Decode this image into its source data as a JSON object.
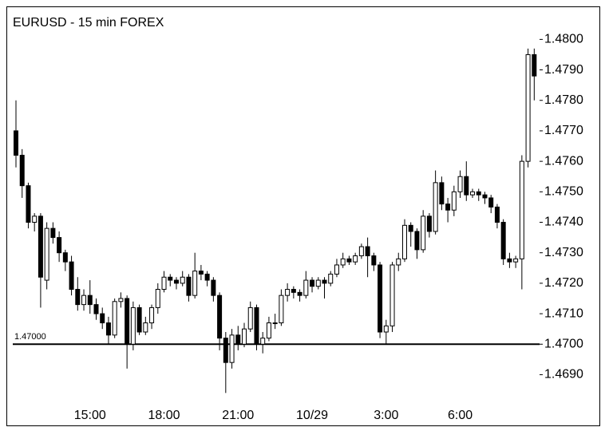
{
  "chart_data": {
    "type": "candlestick",
    "title": "EURUSD - 15 min  FOREX",
    "categories": [
      null,
      null,
      null,
      null,
      null,
      null,
      null,
      null,
      null,
      null,
      null,
      null,
      "15:00",
      null,
      null,
      null,
      null,
      null,
      null,
      null,
      null,
      null,
      null,
      null,
      "18:00",
      null,
      null,
      null,
      null,
      null,
      null,
      null,
      null,
      null,
      null,
      null,
      "21:00",
      null,
      null,
      null,
      null,
      null,
      null,
      null,
      null,
      null,
      null,
      null,
      "10/29",
      null,
      null,
      null,
      null,
      null,
      null,
      null,
      null,
      null,
      null,
      null,
      "3:00",
      null,
      null,
      null,
      null,
      null,
      null,
      null,
      null,
      null,
      null,
      null,
      "6:00",
      null,
      null,
      null,
      null,
      null,
      null,
      null,
      null,
      null,
      null,
      null,
      null
    ],
    "open": [
      1.477,
      1.4762,
      1.4752,
      1.474,
      1.4742,
      1.4721,
      1.4738,
      1.4735,
      1.473,
      1.4727,
      1.4718,
      1.4713,
      1.4716,
      1.4713,
      1.471,
      1.4707,
      1.4703,
      1.4714,
      1.4715,
      1.47,
      1.4712,
      1.4704,
      1.4707,
      1.4712,
      1.4718,
      1.4722,
      1.4721,
      1.472,
      1.4722,
      1.4716,
      1.4724,
      1.4723,
      1.4721,
      1.4716,
      1.4702,
      1.4694,
      1.4703,
      1.47,
      1.4705,
      1.4712,
      1.47,
      1.4702,
      1.4707,
      1.4707,
      1.4716,
      1.4718,
      1.4717,
      1.4716,
      1.4721,
      1.4719,
      1.4721,
      1.472,
      1.4723,
      1.4726,
      1.4728,
      1.4727,
      1.4729,
      1.4732,
      1.4729,
      1.4726,
      1.4704,
      1.4706,
      1.4726,
      1.4728,
      1.4739,
      1.4737,
      1.4731,
      1.4742,
      1.4737,
      1.4753,
      1.4746,
      1.4744,
      1.475,
      1.4755,
      1.4749,
      1.475,
      1.4749,
      1.4748,
      1.4745,
      1.474,
      1.4728,
      1.4727,
      1.4728,
      1.476,
      1.4795
    ],
    "high": [
      1.478,
      1.4764,
      1.4753,
      1.4743,
      1.4743,
      1.474,
      1.474,
      1.4737,
      1.4731,
      1.4729,
      1.4722,
      1.4718,
      1.4721,
      1.4715,
      1.4712,
      1.4709,
      1.4715,
      1.4717,
      1.4716,
      1.4714,
      1.4713,
      1.4709,
      1.4713,
      1.472,
      1.4724,
      1.4723,
      1.4722,
      1.4724,
      1.4723,
      1.473,
      1.4726,
      1.4724,
      1.4722,
      1.4717,
      1.4704,
      1.4705,
      1.4706,
      1.4707,
      1.4714,
      1.4713,
      1.4704,
      1.4709,
      1.471,
      1.4718,
      1.472,
      1.4719,
      1.4718,
      1.4724,
      1.4722,
      1.4722,
      1.4722,
      1.4724,
      1.4728,
      1.473,
      1.4729,
      1.473,
      1.4733,
      1.4735,
      1.473,
      1.4727,
      1.4708,
      1.4727,
      1.473,
      1.4741,
      1.474,
      1.4738,
      1.4744,
      1.4743,
      1.4757,
      1.4755,
      1.4748,
      1.4752,
      1.4757,
      1.476,
      1.4751,
      1.4751,
      1.475,
      1.4749,
      1.4746,
      1.4741,
      1.473,
      1.4729,
      1.4762,
      1.4797,
      1.4797
    ],
    "low": [
      1.4758,
      1.4748,
      1.4738,
      1.4737,
      1.4712,
      1.4718,
      1.4733,
      1.4727,
      1.4724,
      1.4716,
      1.4711,
      1.4711,
      1.471,
      1.4708,
      1.4705,
      1.47,
      1.4702,
      1.4712,
      1.4692,
      1.4698,
      1.4703,
      1.4703,
      1.4705,
      1.471,
      1.4717,
      1.4719,
      1.4718,
      1.4719,
      1.4714,
      1.4715,
      1.4721,
      1.4719,
      1.4714,
      1.4698,
      1.4684,
      1.4692,
      1.4698,
      1.4699,
      1.4704,
      1.4698,
      1.4697,
      1.4701,
      1.4705,
      1.4706,
      1.4714,
      1.4715,
      1.4714,
      1.4715,
      1.4717,
      1.4718,
      1.4715,
      1.4719,
      1.4722,
      1.4725,
      1.4726,
      1.4726,
      1.4728,
      1.4722,
      1.4724,
      1.4702,
      1.47,
      1.4704,
      1.4724,
      1.4727,
      1.4732,
      1.4728,
      1.473,
      1.4735,
      1.4736,
      1.4744,
      1.474,
      1.4742,
      1.4748,
      1.4747,
      1.4748,
      1.4747,
      1.4746,
      1.4743,
      1.4738,
      1.4726,
      1.4725,
      1.4725,
      1.4718,
      1.4758,
      1.478
    ],
    "close": [
      1.4762,
      1.4752,
      1.474,
      1.4742,
      1.4722,
      1.4738,
      1.4735,
      1.473,
      1.4727,
      1.4718,
      1.4713,
      1.4716,
      1.4713,
      1.471,
      1.4707,
      1.4703,
      1.4714,
      1.4715,
      1.47,
      1.4712,
      1.4704,
      1.4707,
      1.4712,
      1.4718,
      1.4722,
      1.4721,
      1.472,
      1.4722,
      1.4716,
      1.4724,
      1.4723,
      1.4721,
      1.4716,
      1.4702,
      1.4694,
      1.4703,
      1.47,
      1.4705,
      1.4712,
      1.47,
      1.4702,
      1.4707,
      1.4707,
      1.4716,
      1.4718,
      1.4717,
      1.4716,
      1.4721,
      1.4719,
      1.4721,
      1.472,
      1.4723,
      1.4726,
      1.4728,
      1.4727,
      1.4729,
      1.4732,
      1.4729,
      1.4726,
      1.4704,
      1.4706,
      1.4726,
      1.4728,
      1.4739,
      1.4737,
      1.4731,
      1.4742,
      1.4737,
      1.4753,
      1.4746,
      1.4744,
      1.475,
      1.4755,
      1.4749,
      1.475,
      1.4749,
      1.4748,
      1.4745,
      1.474,
      1.4728,
      1.4727,
      1.4728,
      1.476,
      1.4795,
      1.4788
    ],
    "ylim": [
      1.4682,
      1.4809
    ],
    "yticks": [
      {
        "value": 1.469,
        "label": "1.4690"
      },
      {
        "value": 1.47,
        "label": "1.4700"
      },
      {
        "value": 1.471,
        "label": "1.4710"
      },
      {
        "value": 1.472,
        "label": "1.4720"
      },
      {
        "value": 1.473,
        "label": "1.4730"
      },
      {
        "value": 1.474,
        "label": "1.4740"
      },
      {
        "value": 1.475,
        "label": "1.4750"
      },
      {
        "value": 1.476,
        "label": "1.4760"
      },
      {
        "value": 1.477,
        "label": "1.4770"
      },
      {
        "value": 1.478,
        "label": "1.4780"
      },
      {
        "value": 1.479,
        "label": "1.4790"
      },
      {
        "value": 1.48,
        "label": "1.4800"
      }
    ],
    "reference_line": {
      "value": 1.47,
      "label": "1.47000"
    }
  }
}
